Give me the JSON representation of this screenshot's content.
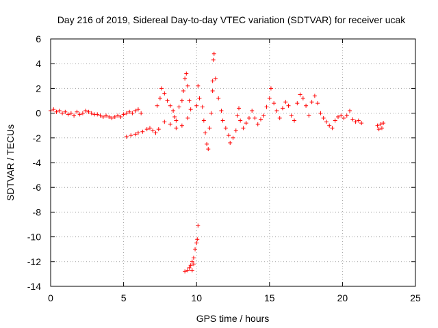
{
  "chart_data": {
    "type": "scatter",
    "title": "Day 216 of 2019, Sidereal Day-to-day VTEC variation (SDTVAR) for receiver ucak",
    "xlabel": "GPS time / hours",
    "ylabel": "SDTVAR / TECUs",
    "xlim": [
      0,
      25
    ],
    "ylim": [
      -14,
      6
    ],
    "xticks": [
      0,
      5,
      10,
      15,
      20,
      25
    ],
    "yticks": [
      -14,
      -12,
      -10,
      -8,
      -6,
      -4,
      -2,
      0,
      2,
      4,
      6
    ],
    "xtick_labels": [
      "0",
      "5",
      "10",
      "15",
      "20",
      "25"
    ],
    "ytick_labels": [
      "-14",
      "-12",
      "-10",
      "-8",
      "-6",
      "-4",
      "-2",
      "0",
      "2",
      "4",
      "6"
    ],
    "grid": true,
    "marker": "+",
    "color": "#ff0000",
    "series": [
      {
        "name": "SDTVAR",
        "points": [
          [
            0.0,
            0.2
          ],
          [
            0.2,
            0.3
          ],
          [
            0.4,
            0.1
          ],
          [
            0.6,
            0.2
          ],
          [
            0.8,
            0.0
          ],
          [
            1.0,
            0.1
          ],
          [
            1.2,
            -0.1
          ],
          [
            1.4,
            0.0
          ],
          [
            1.6,
            -0.2
          ],
          [
            1.8,
            0.1
          ],
          [
            2.0,
            -0.1
          ],
          [
            2.2,
            0.0
          ],
          [
            2.4,
            0.2
          ],
          [
            2.6,
            0.1
          ],
          [
            2.8,
            0.0
          ],
          [
            3.0,
            -0.1
          ],
          [
            3.2,
            -0.1
          ],
          [
            3.4,
            -0.2
          ],
          [
            3.6,
            -0.3
          ],
          [
            3.8,
            -0.2
          ],
          [
            4.0,
            -0.3
          ],
          [
            4.2,
            -0.4
          ],
          [
            4.4,
            -0.3
          ],
          [
            4.6,
            -0.2
          ],
          [
            4.8,
            -0.3
          ],
          [
            5.0,
            -0.1
          ],
          [
            5.2,
            0.0
          ],
          [
            5.4,
            0.1
          ],
          [
            5.6,
            0.0
          ],
          [
            5.8,
            0.2
          ],
          [
            6.0,
            0.3
          ],
          [
            6.2,
            0.0
          ],
          [
            5.2,
            -1.9
          ],
          [
            5.5,
            -1.8
          ],
          [
            5.8,
            -1.7
          ],
          [
            6.0,
            -1.6
          ],
          [
            6.3,
            -1.5
          ],
          [
            6.6,
            -1.3
          ],
          [
            6.8,
            -1.2
          ],
          [
            7.0,
            -1.4
          ],
          [
            7.2,
            -1.6
          ],
          [
            7.4,
            -1.3
          ],
          [
            7.3,
            0.6
          ],
          [
            7.5,
            1.2
          ],
          [
            7.6,
            2.0
          ],
          [
            7.8,
            1.6
          ],
          [
            8.0,
            1.0
          ],
          [
            8.2,
            0.6
          ],
          [
            8.4,
            0.2
          ],
          [
            8.5,
            -0.3
          ],
          [
            8.6,
            -0.6
          ],
          [
            8.8,
            0.5
          ],
          [
            9.0,
            1.0
          ],
          [
            9.1,
            1.8
          ],
          [
            9.2,
            2.8
          ],
          [
            9.3,
            3.2
          ],
          [
            9.4,
            2.2
          ],
          [
            9.5,
            1.0
          ],
          [
            9.6,
            0.3
          ],
          [
            7.8,
            -0.7
          ],
          [
            8.2,
            -0.9
          ],
          [
            8.6,
            -1.2
          ],
          [
            9.0,
            -1.0
          ],
          [
            9.4,
            -0.4
          ],
          [
            9.2,
            -12.8
          ],
          [
            9.4,
            -12.7
          ],
          [
            9.5,
            -12.5
          ],
          [
            9.6,
            -12.3
          ],
          [
            9.7,
            -12.0
          ],
          [
            9.8,
            -11.7
          ],
          [
            9.9,
            -11.0
          ],
          [
            10.0,
            -10.5
          ],
          [
            10.05,
            -10.2
          ],
          [
            10.1,
            -9.1
          ],
          [
            9.7,
            -12.7
          ],
          [
            9.8,
            -12.2
          ],
          [
            10.0,
            0.6
          ],
          [
            10.2,
            1.2
          ],
          [
            10.1,
            2.2
          ],
          [
            10.4,
            0.5
          ],
          [
            10.5,
            -0.6
          ],
          [
            10.6,
            -1.6
          ],
          [
            10.7,
            -2.5
          ],
          [
            10.8,
            -2.9
          ],
          [
            10.9,
            -1.2
          ],
          [
            11.0,
            0.0
          ],
          [
            11.1,
            1.8
          ],
          [
            11.1,
            2.6
          ],
          [
            11.15,
            4.3
          ],
          [
            11.2,
            4.8
          ],
          [
            11.3,
            2.8
          ],
          [
            11.5,
            1.2
          ],
          [
            11.7,
            0.2
          ],
          [
            11.8,
            -0.6
          ],
          [
            12.0,
            -1.2
          ],
          [
            12.2,
            -1.8
          ],
          [
            12.3,
            -2.4
          ],
          [
            12.5,
            -2.0
          ],
          [
            12.7,
            -1.4
          ],
          [
            12.8,
            -0.2
          ],
          [
            12.9,
            0.4
          ],
          [
            13.0,
            -0.6
          ],
          [
            13.2,
            -1.2
          ],
          [
            13.4,
            -0.8
          ],
          [
            13.6,
            -0.4
          ],
          [
            13.8,
            0.2
          ],
          [
            14.0,
            -0.4
          ],
          [
            14.2,
            -0.9
          ],
          [
            14.4,
            -0.5
          ],
          [
            14.6,
            -0.2
          ],
          [
            14.8,
            0.5
          ],
          [
            15.0,
            1.2
          ],
          [
            15.1,
            2.0
          ],
          [
            15.3,
            0.8
          ],
          [
            15.5,
            0.2
          ],
          [
            15.7,
            -0.4
          ],
          [
            15.9,
            0.4
          ],
          [
            16.1,
            0.9
          ],
          [
            16.3,
            0.6
          ],
          [
            16.5,
            -0.2
          ],
          [
            16.7,
            -0.6
          ],
          [
            16.9,
            0.8
          ],
          [
            17.1,
            1.5
          ],
          [
            17.3,
            1.2
          ],
          [
            17.5,
            0.6
          ],
          [
            17.7,
            -0.2
          ],
          [
            17.9,
            0.9
          ],
          [
            18.1,
            1.4
          ],
          [
            18.3,
            0.8
          ],
          [
            18.5,
            0.0
          ],
          [
            18.7,
            -0.4
          ],
          [
            18.9,
            -0.7
          ],
          [
            19.1,
            -1.0
          ],
          [
            19.3,
            -1.2
          ],
          [
            19.5,
            -0.6
          ],
          [
            19.7,
            -0.3
          ],
          [
            19.9,
            -0.2
          ],
          [
            20.1,
            -0.4
          ],
          [
            20.3,
            -0.2
          ],
          [
            20.5,
            0.2
          ],
          [
            20.7,
            -0.5
          ],
          [
            20.9,
            -0.7
          ],
          [
            21.1,
            -0.6
          ],
          [
            21.3,
            -0.8
          ],
          [
            22.4,
            -1.0
          ],
          [
            22.5,
            -1.3
          ],
          [
            22.6,
            -0.9
          ],
          [
            22.7,
            -1.2
          ],
          [
            22.8,
            -0.8
          ]
        ]
      }
    ]
  }
}
